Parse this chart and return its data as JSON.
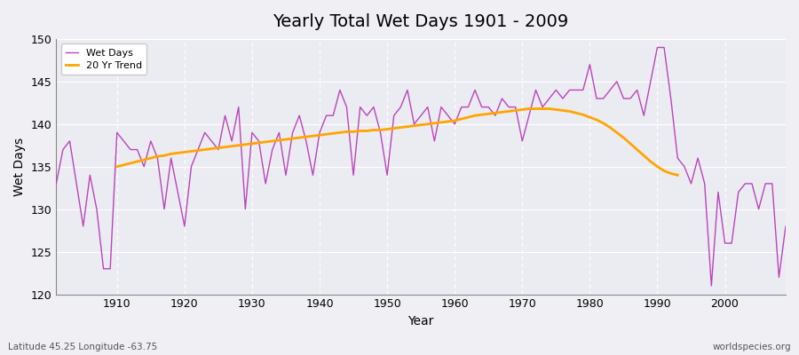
{
  "title": "Yearly Total Wet Days 1901 - 2009",
  "xlabel": "Year",
  "ylabel": "Wet Days",
  "lat_lon_label": "Latitude 45.25 Longitude -63.75",
  "source_label": "worldspecies.org",
  "ylim": [
    120,
    150
  ],
  "xlim": [
    1901,
    2009
  ],
  "yticks": [
    120,
    125,
    130,
    135,
    140,
    145,
    150
  ],
  "xticks": [
    1910,
    1920,
    1930,
    1940,
    1950,
    1960,
    1970,
    1980,
    1990,
    2000
  ],
  "wet_days_color": "#bb44bb",
  "trend_color": "#ffa500",
  "background_color": "#f0f0f4",
  "plot_bg_color": "#ebebf2",
  "grid_color": "#ffffff",
  "wet_days_linewidth": 1.0,
  "trend_linewidth": 2.0,
  "years": [
    1901,
    1902,
    1903,
    1904,
    1905,
    1906,
    1907,
    1908,
    1909,
    1910,
    1911,
    1912,
    1913,
    1914,
    1915,
    1916,
    1917,
    1918,
    1919,
    1920,
    1921,
    1922,
    1923,
    1924,
    1925,
    1926,
    1927,
    1928,
    1929,
    1930,
    1931,
    1932,
    1933,
    1934,
    1935,
    1936,
    1937,
    1938,
    1939,
    1940,
    1941,
    1942,
    1943,
    1944,
    1945,
    1946,
    1947,
    1948,
    1949,
    1950,
    1951,
    1952,
    1953,
    1954,
    1955,
    1956,
    1957,
    1958,
    1959,
    1960,
    1961,
    1962,
    1963,
    1964,
    1965,
    1966,
    1967,
    1968,
    1969,
    1970,
    1971,
    1972,
    1973,
    1974,
    1975,
    1976,
    1977,
    1978,
    1979,
    1980,
    1981,
    1982,
    1983,
    1984,
    1985,
    1986,
    1987,
    1988,
    1989,
    1990,
    1991,
    1992,
    1993,
    1994,
    1995,
    1996,
    1997,
    1998,
    1999,
    2000,
    2001,
    2002,
    2003,
    2004,
    2005,
    2006,
    2007,
    2008,
    2009
  ],
  "wet_days": [
    133,
    137,
    138,
    133,
    128,
    134,
    130,
    123,
    123,
    139,
    138,
    137,
    137,
    135,
    138,
    136,
    130,
    136,
    132,
    128,
    135,
    137,
    139,
    138,
    137,
    141,
    138,
    142,
    130,
    139,
    138,
    133,
    137,
    139,
    134,
    139,
    141,
    138,
    134,
    139,
    141,
    141,
    144,
    142,
    134,
    142,
    141,
    142,
    139,
    134,
    141,
    142,
    144,
    140,
    141,
    142,
    138,
    142,
    141,
    140,
    142,
    142,
    144,
    142,
    142,
    141,
    143,
    142,
    142,
    138,
    141,
    144,
    142,
    143,
    144,
    143,
    144,
    144,
    144,
    147,
    143,
    143,
    144,
    145,
    143,
    143,
    144,
    141,
    145,
    149,
    149,
    143,
    136,
    135,
    133,
    136,
    133,
    121,
    132,
    126,
    126,
    132,
    133,
    133,
    130,
    133,
    133,
    122,
    128
  ],
  "trend_years": [
    1910,
    1911,
    1912,
    1913,
    1914,
    1915,
    1916,
    1917,
    1918,
    1919,
    1920,
    1921,
    1922,
    1923,
    1924,
    1925,
    1926,
    1927,
    1928,
    1929,
    1930,
    1931,
    1932,
    1933,
    1934,
    1935,
    1936,
    1937,
    1938,
    1939,
    1940,
    1941,
    1942,
    1943,
    1944,
    1945,
    1946,
    1947,
    1948,
    1949,
    1950,
    1951,
    1952,
    1953,
    1954,
    1955,
    1956,
    1957,
    1958,
    1959,
    1960,
    1961,
    1962,
    1963,
    1964,
    1965,
    1966,
    1967,
    1968,
    1969,
    1970,
    1971,
    1972,
    1973,
    1974,
    1975,
    1976,
    1977,
    1978,
    1979,
    1980,
    1981,
    1982,
    1983,
    1984,
    1985,
    1986,
    1987,
    1988,
    1989,
    1990,
    1991,
    1992,
    1993
  ],
  "trend_vals": [
    135.0,
    135.2,
    135.4,
    135.6,
    135.8,
    136.0,
    136.2,
    136.3,
    136.5,
    136.6,
    136.7,
    136.8,
    136.9,
    137.0,
    137.1,
    137.2,
    137.3,
    137.4,
    137.5,
    137.6,
    137.7,
    137.8,
    137.9,
    138.0,
    138.1,
    138.2,
    138.3,
    138.4,
    138.5,
    138.6,
    138.7,
    138.8,
    138.9,
    139.0,
    139.1,
    139.1,
    139.2,
    139.2,
    139.3,
    139.3,
    139.4,
    139.5,
    139.6,
    139.7,
    139.8,
    139.9,
    140.0,
    140.1,
    140.2,
    140.3,
    140.4,
    140.6,
    140.8,
    141.0,
    141.1,
    141.2,
    141.3,
    141.4,
    141.5,
    141.6,
    141.7,
    141.8,
    141.8,
    141.8,
    141.8,
    141.7,
    141.6,
    141.5,
    141.3,
    141.1,
    140.8,
    140.5,
    140.1,
    139.6,
    139.0,
    138.4,
    137.7,
    137.0,
    136.3,
    135.6,
    135.0,
    134.5,
    134.2,
    134.0
  ]
}
